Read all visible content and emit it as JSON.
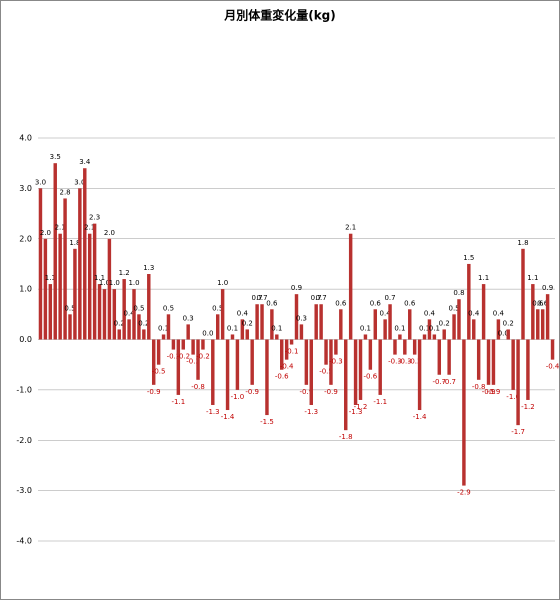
{
  "chart_data": {
    "type": "bar",
    "title": "月別体重変化量(kg)",
    "values": [
      3.0,
      2.0,
      1.1,
      3.5,
      2.1,
      2.8,
      0.5,
      1.8,
      3.0,
      3.4,
      2.1,
      2.3,
      1.1,
      1.0,
      2.0,
      1.0,
      0.2,
      1.2,
      0.4,
      1.0,
      0.5,
      0.2,
      1.3,
      -0.9,
      -0.5,
      0.1,
      0.5,
      -0.2,
      -1.1,
      -0.2,
      0.3,
      -0.3,
      -0.8,
      -0.2,
      0.0,
      -1.3,
      0.5,
      1.0,
      -1.4,
      0.1,
      -1.0,
      0.4,
      0.2,
      -0.9,
      0.7,
      0.7,
      -1.5,
      0.6,
      0.1,
      -0.6,
      -0.4,
      -0.1,
      0.9,
      0.3,
      -0.9,
      -1.3,
      0.7,
      0.7,
      -0.5,
      -0.9,
      -0.3,
      0.6,
      -1.8,
      2.1,
      -1.3,
      -1.2,
      0.1,
      -0.6,
      0.6,
      -1.1,
      0.4,
      0.7,
      -0.3,
      0.1,
      -0.3,
      0.6,
      -0.3,
      -1.4,
      0.1,
      0.4,
      0.1,
      -0.7,
      0.2,
      -0.7,
      0.5,
      0.8,
      -2.9,
      1.5,
      0.4,
      -0.8,
      1.1,
      -0.9,
      -0.9,
      0.4,
      0.0,
      0.2,
      -1.0,
      -1.7,
      1.8,
      -1.2,
      1.1,
      0.6,
      0.6,
      0.9,
      -0.4
    ],
    "value_labels": [
      "3.0",
      "2.0",
      "1.1",
      "3.5",
      "2.1",
      "2.8",
      "0.5",
      "1.8",
      "3.0",
      "3.4",
      "2.1",
      "2.3",
      "1.1",
      "1.0",
      "2.0",
      "1.0",
      "0.2",
      "1.2",
      "0.4",
      "1.0",
      "0.5",
      "0.2",
      "1.3",
      "-0.9",
      "-0.5",
      "0.1",
      "0.5",
      "-0.2",
      "-1.1",
      "-0.2",
      "0.3",
      "-0.3",
      "-0.8",
      "-0.2",
      "0.0",
      "-1.3",
      "0.5",
      "1.0",
      "-1.4",
      "0.1",
      "-1.0",
      "0.4",
      "0.2",
      "-0.9",
      "0.7",
      "0.7",
      "-1.5",
      "0.6",
      "0.1",
      "-0.6",
      "-0.4",
      "-0.1",
      "0.9",
      "0.3",
      "-0.9",
      "-1.3",
      "0.7",
      "0.7",
      "-0.5",
      "-0.9",
      "-0.3",
      "0.6",
      "-1.8",
      "2.1",
      "-1.3",
      "-1.2",
      "0.1",
      "-0.6",
      "0.6",
      "-1.1",
      "0.4",
      "0.7",
      "-0.3",
      "0.1",
      "-0.3",
      "0.6",
      "-0.3",
      "-1.4",
      "0.1",
      "0.4",
      "0.1",
      "-0.7",
      "0.2",
      "-0.7",
      "0.5",
      "0.8",
      "-2.9",
      "1.5",
      "0.4",
      "-0.8",
      "1.1",
      "-0.9",
      "-0.9",
      "0.4",
      "0.0",
      "0.2",
      "-1.0",
      "-1.7",
      "1.8",
      "-1.2",
      "1.1",
      "0.6",
      "0.6",
      "0.9",
      "-0.4"
    ],
    "color": "#b8312f",
    "positive_label_color": "#000000",
    "negative_label_color": "#c00000",
    "ylim": [
      -4,
      4
    ],
    "yticks": [
      {
        "value": -4,
        "label": "-4.0"
      },
      {
        "value": -3,
        "label": "-3.0"
      },
      {
        "value": -2,
        "label": "-2.0"
      },
      {
        "value": -1,
        "label": "-1.0"
      },
      {
        "value": 0,
        "label": "0.0"
      },
      {
        "value": 1,
        "label": "1.0"
      },
      {
        "value": 2,
        "label": "2.0"
      },
      {
        "value": 3,
        "label": "3.0"
      },
      {
        "value": 4,
        "label": "4.0"
      }
    ],
    "grid": true
  }
}
